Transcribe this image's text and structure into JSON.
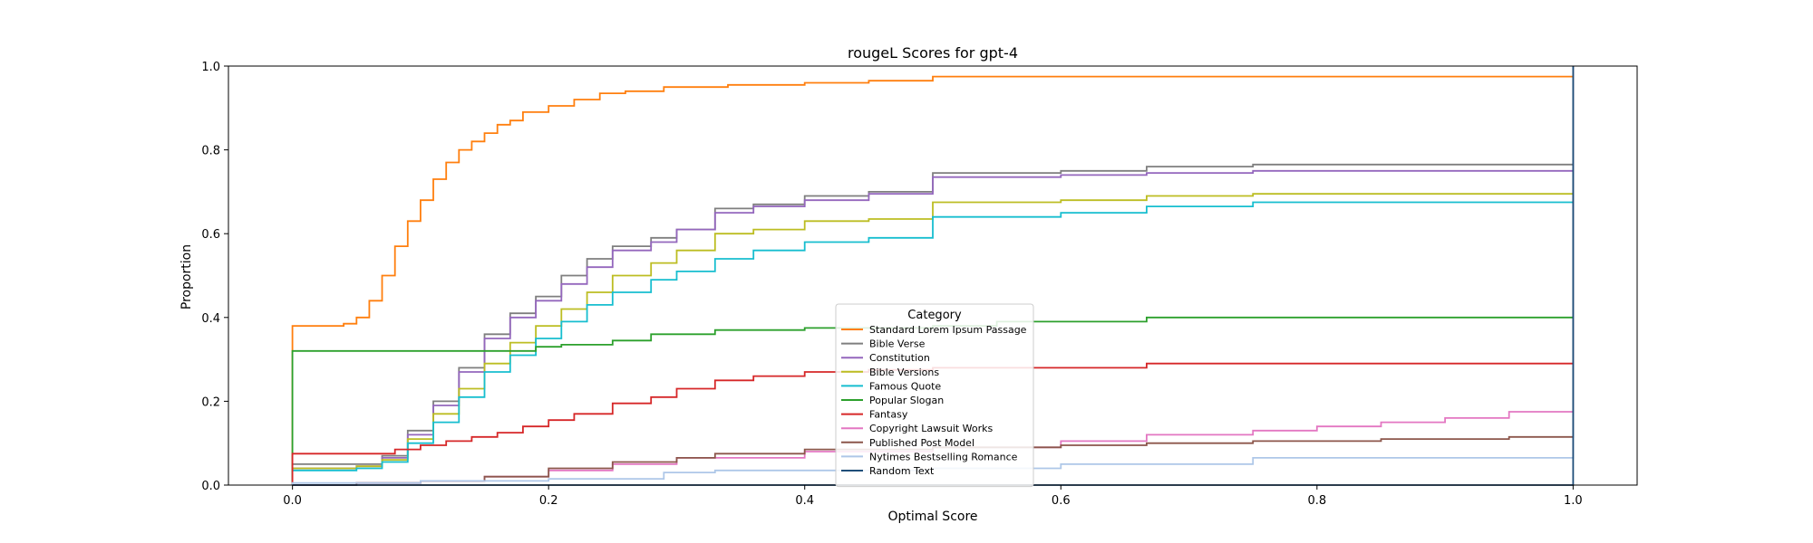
{
  "chart_data": {
    "type": "line",
    "step": true,
    "title": "rougeL Scores for gpt-4",
    "xlabel": "Optimal Score",
    "ylabel": "Proportion",
    "xlim": [
      -0.05,
      1.05
    ],
    "ylim": [
      0.0,
      1.0
    ],
    "xticks": [
      0.0,
      0.2,
      0.4,
      0.6,
      0.8,
      1.0
    ],
    "xtick_labels": [
      "0.0",
      "0.2",
      "0.4",
      "0.6",
      "0.8",
      "1.0"
    ],
    "yticks": [
      0.0,
      0.2,
      0.4,
      0.6,
      0.8,
      1.0
    ],
    "ytick_labels": [
      "0.0",
      "0.2",
      "0.4",
      "0.6",
      "0.8",
      "1.0"
    ],
    "grid": false,
    "legend": {
      "title": "Category",
      "placement": "lower-center"
    },
    "series": [
      {
        "name": "Standard Lorem Ipsum Passage",
        "color": "#ff7f0e",
        "x": [
          0,
          0.03,
          0.04,
          0.05,
          0.06,
          0.07,
          0.08,
          0.09,
          0.1,
          0.11,
          0.12,
          0.13,
          0.14,
          0.15,
          0.16,
          0.17,
          0.18,
          0.2,
          0.22,
          0.24,
          0.26,
          0.29,
          0.34,
          0.4,
          0.45,
          0.5,
          1.0
        ],
        "y": [
          0.38,
          0.38,
          0.385,
          0.4,
          0.44,
          0.5,
          0.57,
          0.63,
          0.68,
          0.73,
          0.77,
          0.8,
          0.82,
          0.84,
          0.86,
          0.87,
          0.89,
          0.905,
          0.92,
          0.935,
          0.94,
          0.95,
          0.955,
          0.96,
          0.965,
          0.975,
          0.975
        ]
      },
      {
        "name": "Bible Verse",
        "color": "#7f7f7f",
        "x": [
          0,
          0.05,
          0.07,
          0.09,
          0.11,
          0.13,
          0.15,
          0.17,
          0.19,
          0.21,
          0.23,
          0.25,
          0.28,
          0.3,
          0.33,
          0.36,
          0.4,
          0.45,
          0.5,
          0.6,
          0.667,
          0.75,
          1.0
        ],
        "y": [
          0.05,
          0.05,
          0.07,
          0.13,
          0.2,
          0.28,
          0.36,
          0.41,
          0.45,
          0.5,
          0.54,
          0.57,
          0.59,
          0.61,
          0.66,
          0.67,
          0.69,
          0.7,
          0.745,
          0.75,
          0.76,
          0.765,
          0.765
        ]
      },
      {
        "name": "Constitution",
        "color": "#9467bd",
        "x": [
          0,
          0.05,
          0.07,
          0.09,
          0.11,
          0.13,
          0.15,
          0.17,
          0.19,
          0.21,
          0.23,
          0.25,
          0.28,
          0.3,
          0.33,
          0.36,
          0.4,
          0.45,
          0.5,
          0.6,
          0.667,
          0.75,
          1.0
        ],
        "y": [
          0.04,
          0.045,
          0.065,
          0.12,
          0.19,
          0.27,
          0.35,
          0.4,
          0.44,
          0.48,
          0.52,
          0.56,
          0.58,
          0.61,
          0.65,
          0.665,
          0.68,
          0.695,
          0.735,
          0.74,
          0.745,
          0.75,
          0.75
        ]
      },
      {
        "name": "Bible Versions",
        "color": "#bcbd22",
        "x": [
          0,
          0.05,
          0.07,
          0.09,
          0.11,
          0.13,
          0.15,
          0.17,
          0.19,
          0.21,
          0.23,
          0.25,
          0.28,
          0.3,
          0.33,
          0.36,
          0.4,
          0.45,
          0.5,
          0.6,
          0.667,
          0.75,
          1.0
        ],
        "y": [
          0.04,
          0.045,
          0.06,
          0.11,
          0.17,
          0.23,
          0.29,
          0.34,
          0.38,
          0.42,
          0.46,
          0.5,
          0.53,
          0.56,
          0.6,
          0.61,
          0.63,
          0.635,
          0.675,
          0.68,
          0.69,
          0.695,
          0.695
        ]
      },
      {
        "name": "Famous Quote",
        "color": "#17becf",
        "x": [
          0,
          0.05,
          0.07,
          0.09,
          0.11,
          0.13,
          0.15,
          0.17,
          0.19,
          0.21,
          0.23,
          0.25,
          0.28,
          0.3,
          0.33,
          0.36,
          0.4,
          0.45,
          0.5,
          0.6,
          0.667,
          0.75,
          1.0
        ],
        "y": [
          0.035,
          0.04,
          0.055,
          0.1,
          0.15,
          0.21,
          0.27,
          0.31,
          0.35,
          0.39,
          0.43,
          0.46,
          0.49,
          0.51,
          0.54,
          0.56,
          0.58,
          0.59,
          0.64,
          0.65,
          0.665,
          0.675,
          0.68
        ]
      },
      {
        "name": "Popular Slogan",
        "color": "#2ca02c",
        "x": [
          0,
          0.15,
          0.17,
          0.19,
          0.21,
          0.25,
          0.28,
          0.33,
          0.4,
          0.5,
          0.55,
          0.667,
          1.0
        ],
        "y": [
          0.32,
          0.32,
          0.32,
          0.33,
          0.335,
          0.345,
          0.36,
          0.37,
          0.375,
          0.38,
          0.39,
          0.4,
          0.4
        ]
      },
      {
        "name": "Fantasy",
        "color": "#d62728",
        "x": [
          0,
          0.06,
          0.08,
          0.1,
          0.12,
          0.14,
          0.16,
          0.18,
          0.2,
          0.22,
          0.25,
          0.28,
          0.3,
          0.33,
          0.36,
          0.4,
          0.45,
          0.5,
          0.55,
          0.667,
          0.8,
          1.0
        ],
        "y": [
          0.075,
          0.075,
          0.085,
          0.095,
          0.105,
          0.115,
          0.125,
          0.14,
          0.155,
          0.17,
          0.195,
          0.21,
          0.23,
          0.25,
          0.26,
          0.27,
          0.275,
          0.28,
          0.28,
          0.29,
          0.29,
          0.29
        ]
      },
      {
        "name": "Copyright Lawsuit Works",
        "color": "#e377c2",
        "x": [
          0,
          0.05,
          0.1,
          0.15,
          0.2,
          0.25,
          0.3,
          0.4,
          0.5,
          0.6,
          0.667,
          0.75,
          0.8,
          0.85,
          0.9,
          0.95,
          1.0
        ],
        "y": [
          0.0,
          0.005,
          0.01,
          0.02,
          0.035,
          0.05,
          0.065,
          0.08,
          0.09,
          0.105,
          0.12,
          0.13,
          0.14,
          0.15,
          0.16,
          0.175,
          0.18
        ]
      },
      {
        "name": "Published Post Model",
        "color": "#8c564b",
        "x": [
          0,
          0.05,
          0.1,
          0.15,
          0.2,
          0.25,
          0.3,
          0.33,
          0.4,
          0.5,
          0.6,
          0.667,
          0.75,
          0.85,
          0.95,
          1.0
        ],
        "y": [
          0.0,
          0.005,
          0.01,
          0.02,
          0.04,
          0.055,
          0.065,
          0.075,
          0.085,
          0.09,
          0.095,
          0.1,
          0.105,
          0.11,
          0.115,
          0.12
        ]
      },
      {
        "name": "Nytimes Bestselling Romance",
        "color": "#aec7e8",
        "x": [
          0,
          0.1,
          0.2,
          0.29,
          0.33,
          0.5,
          0.6,
          0.75,
          1.0
        ],
        "y": [
          0.005,
          0.01,
          0.015,
          0.03,
          0.035,
          0.04,
          0.05,
          0.065,
          0.065
        ]
      },
      {
        "name": "Random Text",
        "color": "#1f4e79",
        "x": [
          0,
          1.0
        ],
        "y": [
          0.0,
          0.0
        ]
      }
    ]
  }
}
